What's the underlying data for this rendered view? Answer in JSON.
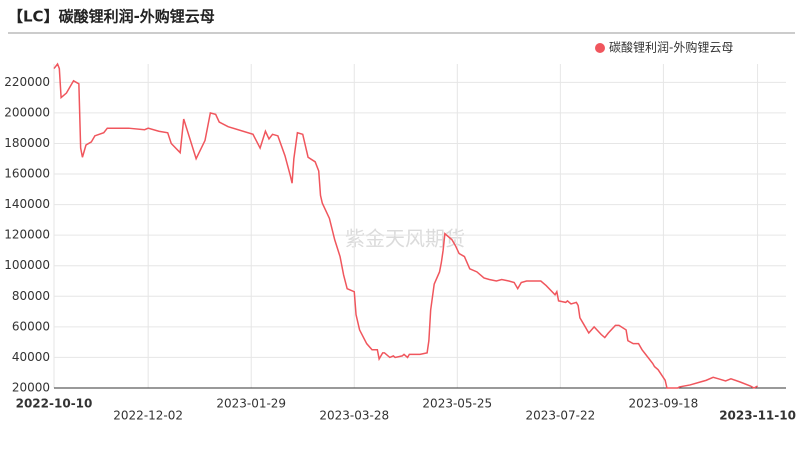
{
  "chart_data": {
    "type": "line",
    "title": "【LC】碳酸锂利润-外购锂云母",
    "watermark": "紫金天风期货",
    "legend_position": "top-right",
    "grid": true,
    "x": [
      "2022-10-10",
      "2022-10-12",
      "2022-10-13",
      "2022-10-14",
      "2022-10-17",
      "2022-10-21",
      "2022-10-24",
      "2022-10-25",
      "2022-10-26",
      "2022-10-28",
      "2022-10-31",
      "2022-11-02",
      "2022-11-07",
      "2022-11-09",
      "2022-11-21",
      "2022-11-30",
      "2022-12-02",
      "2022-12-08",
      "2022-12-13",
      "2022-12-15",
      "2022-12-20",
      "2022-12-22",
      "2022-12-29",
      "2023-01-03",
      "2023-01-06",
      "2023-01-09",
      "2023-01-11",
      "2023-01-16",
      "2023-01-30",
      "2023-02-03",
      "2023-02-06",
      "2023-02-08",
      "2023-02-10",
      "2023-02-13",
      "2023-02-17",
      "2023-02-20",
      "2023-02-21",
      "2023-02-22",
      "2023-02-24",
      "2023-02-27",
      "2023-02-28",
      "2023-03-02",
      "2023-03-06",
      "2023-03-08",
      "2023-03-09",
      "2023-03-10",
      "2023-03-14",
      "2023-03-17",
      "2023-03-20",
      "2023-03-22",
      "2023-03-24",
      "2023-03-28",
      "2023-03-29",
      "2023-03-31",
      "2023-04-04",
      "2023-04-07",
      "2023-04-10",
      "2023-04-11",
      "2023-04-13",
      "2023-04-14",
      "2023-04-17",
      "2023-04-19",
      "2023-04-20",
      "2023-04-24",
      "2023-04-25",
      "2023-04-27",
      "2023-04-28",
      "2023-05-04",
      "2023-05-08",
      "2023-05-09",
      "2023-05-10",
      "2023-05-12",
      "2023-05-15",
      "2023-05-16",
      "2023-05-17",
      "2023-05-18",
      "2023-05-22",
      "2023-05-24",
      "2023-05-26",
      "2023-05-29",
      "2023-06-01",
      "2023-06-05",
      "2023-06-09",
      "2023-06-12",
      "2023-06-16",
      "2023-06-19",
      "2023-06-23",
      "2023-06-26",
      "2023-06-28",
      "2023-06-30",
      "2023-07-03",
      "2023-07-11",
      "2023-07-14",
      "2023-07-19",
      "2023-07-20",
      "2023-07-21",
      "2023-07-25",
      "2023-07-26",
      "2023-07-28",
      "2023-07-31",
      "2023-08-01",
      "2023-08-02",
      "2023-08-04",
      "2023-08-07",
      "2023-08-10",
      "2023-08-14",
      "2023-08-16",
      "2023-08-18",
      "2023-08-22",
      "2023-08-24",
      "2023-08-28",
      "2023-08-29",
      "2023-09-01",
      "2023-09-04",
      "2023-09-06",
      "2023-09-08",
      "2023-09-12",
      "2023-09-13",
      "2023-09-15",
      "2023-09-19",
      "2023-09-20",
      "2023-09-26",
      "2023-09-27",
      "2023-10-03",
      "2023-10-09",
      "2023-10-12",
      "2023-10-16",
      "2023-10-19",
      "2023-10-23",
      "2023-10-26",
      "2023-10-31",
      "2023-11-06",
      "2023-11-08",
      "2023-11-10"
    ],
    "series": [
      {
        "name": "碳酸锂利润-外购锂云母",
        "color": "#f0565d",
        "values": [
          229000,
          232000,
          229000,
          210000,
          213000,
          221000,
          219000,
          177000,
          171000,
          179000,
          181000,
          185000,
          187000,
          190000,
          190000,
          189000,
          190000,
          188000,
          187000,
          180000,
          174000,
          196000,
          170000,
          182000,
          200000,
          199000,
          194000,
          191000,
          186000,
          177000,
          188000,
          183000,
          186000,
          185000,
          172000,
          159000,
          154000,
          170000,
          187000,
          186000,
          181000,
          171000,
          168000,
          162000,
          146000,
          141000,
          131000,
          117000,
          106000,
          94000,
          85000,
          83000,
          68000,
          58000,
          49000,
          45000,
          45000,
          39000,
          43000,
          43000,
          40000,
          41000,
          40000,
          41000,
          42000,
          40000,
          42000,
          42000,
          43000,
          51000,
          71000,
          88000,
          96000,
          102000,
          110000,
          121000,
          117000,
          113000,
          108000,
          106000,
          98000,
          96000,
          92000,
          91000,
          90000,
          91000,
          90000,
          89000,
          85000,
          89000,
          90000,
          90000,
          87000,
          81000,
          83000,
          77000,
          76000,
          77000,
          75000,
          76000,
          74000,
          66000,
          62000,
          56000,
          60000,
          55000,
          53000,
          56000,
          61000,
          61000,
          58000,
          51000,
          49000,
          49000,
          45000,
          42000,
          36000,
          34000,
          32000,
          25000,
          20000,
          20000,
          20700,
          22000,
          24000,
          25000,
          27000,
          26000,
          24600,
          26000,
          24000,
          21300,
          20000,
          21300
        ]
      }
    ],
    "xlim": [
      "2022-10-10",
      "2023-11-26"
    ],
    "xticks": [
      "2022-10-10",
      "2022-12-02",
      "2023-01-29",
      "2023-03-28",
      "2023-05-25",
      "2023-07-22",
      "2023-09-18",
      "2023-11-10"
    ],
    "ylim": [
      20000,
      232000
    ],
    "yticks": [
      20000,
      40000,
      60000,
      80000,
      100000,
      120000,
      140000,
      160000,
      180000,
      200000,
      220000
    ]
  }
}
